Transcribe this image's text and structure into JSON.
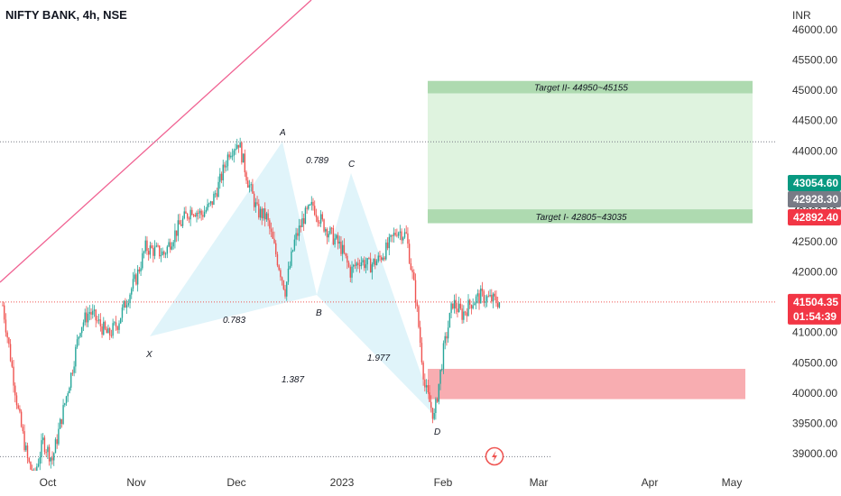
{
  "header": {
    "symbol_label": "NIFTY BANK, 4h, NSE"
  },
  "currency_label": "INR",
  "colors": {
    "bull": "#26a69a",
    "bear": "#ef5350",
    "pattern_fill": "#e0f4fa",
    "target_fill": "#dff3df",
    "target_band": "#a5d6a7",
    "sl_zone": "#f8a9ad",
    "trendline": "#f06292",
    "price_badge": "#f23645",
    "green_badge": "#089981",
    "grey_badge": "#787b86"
  },
  "chart_data": {
    "type": "candlestick",
    "title": "NIFTY BANK, 4h, NSE",
    "x_ticks": [
      "Oct",
      "Nov",
      "Dec",
      "2023",
      "Feb",
      "Mar",
      "Apr",
      "May"
    ],
    "y_ticks": [
      "46000.00",
      "45500.00",
      "45000.00",
      "44500.00",
      "44000.00",
      "43500.00",
      "43000.00",
      "42500.00",
      "42000.00",
      "41500.00",
      "41000.00",
      "40500.00",
      "40000.00",
      "39500.00",
      "39000.00"
    ],
    "ylim": [
      38700,
      46200
    ],
    "series_path": [
      [
        0,
        41450
      ],
      [
        5,
        40600
      ],
      [
        10,
        39700
      ],
      [
        16,
        38900
      ],
      [
        20,
        38600
      ],
      [
        26,
        39200
      ],
      [
        32,
        38900
      ],
      [
        38,
        39600
      ],
      [
        44,
        40300
      ],
      [
        50,
        41100
      ],
      [
        56,
        41350
      ],
      [
        62,
        41150
      ],
      [
        68,
        40950
      ],
      [
        74,
        41150
      ],
      [
        80,
        41550
      ],
      [
        86,
        41900
      ],
      [
        92,
        42400
      ],
      [
        98,
        42350
      ],
      [
        104,
        42300
      ],
      [
        110,
        42600
      ],
      [
        116,
        42850
      ],
      [
        122,
        43050
      ],
      [
        128,
        42950
      ],
      [
        134,
        43100
      ],
      [
        140,
        43500
      ],
      [
        146,
        44000
      ],
      [
        152,
        44150
      ],
      [
        158,
        43500
      ],
      [
        164,
        43000
      ],
      [
        170,
        42900
      ],
      [
        176,
        42300
      ],
      [
        182,
        41700
      ],
      [
        188,
        42500
      ],
      [
        194,
        42900
      ],
      [
        200,
        43100
      ],
      [
        206,
        42800
      ],
      [
        212,
        42600
      ],
      [
        218,
        42400
      ],
      [
        224,
        42000
      ],
      [
        230,
        42200
      ],
      [
        236,
        42100
      ],
      [
        242,
        42200
      ],
      [
        248,
        42400
      ],
      [
        254,
        42700
      ],
      [
        260,
        42600
      ],
      [
        266,
        41600
      ],
      [
        272,
        40100
      ],
      [
        278,
        39600
      ],
      [
        284,
        40700
      ],
      [
        290,
        41500
      ],
      [
        296,
        41300
      ],
      [
        302,
        41500
      ],
      [
        308,
        41600
      ],
      [
        314,
        41550
      ],
      [
        320,
        41504
      ]
    ],
    "pattern_points": [
      {
        "label": "X",
        "value": 40950
      },
      {
        "label": "A",
        "value": 44150
      },
      {
        "label": "B",
        "value": 41650
      },
      {
        "label": "C",
        "value": 43650
      },
      {
        "label": "D",
        "value": 39500
      }
    ],
    "ratios": [
      "0.789",
      "0.783",
      "1.977",
      "1.387"
    ],
    "targets": [
      {
        "label": "Target II- 44950~45155",
        "low": 44950,
        "high": 45155
      },
      {
        "label": "Target I- 42805~43035",
        "low": 42805,
        "high": 43035
      }
    ],
    "target_zone": {
      "low": 43035,
      "high": 44950
    },
    "stop_zone": {
      "low": 39900,
      "high": 40400
    },
    "horizontal_lines": [
      44150,
      41504,
      38950
    ],
    "price_labels": [
      {
        "text": "43054.60",
        "value": 43054.6,
        "kind": "green"
      },
      {
        "text": "42928.30",
        "value": 42928.3,
        "kind": "grey"
      },
      {
        "text": "42892.40",
        "value": 42892.4,
        "kind": "red"
      },
      {
        "text": "41504.35",
        "value": 41504.35,
        "kind": "red"
      },
      {
        "text": "01:54:39",
        "value": 41504.35,
        "kind": "red-sub"
      }
    ]
  },
  "lightning_icon_name": "lightning-icon"
}
